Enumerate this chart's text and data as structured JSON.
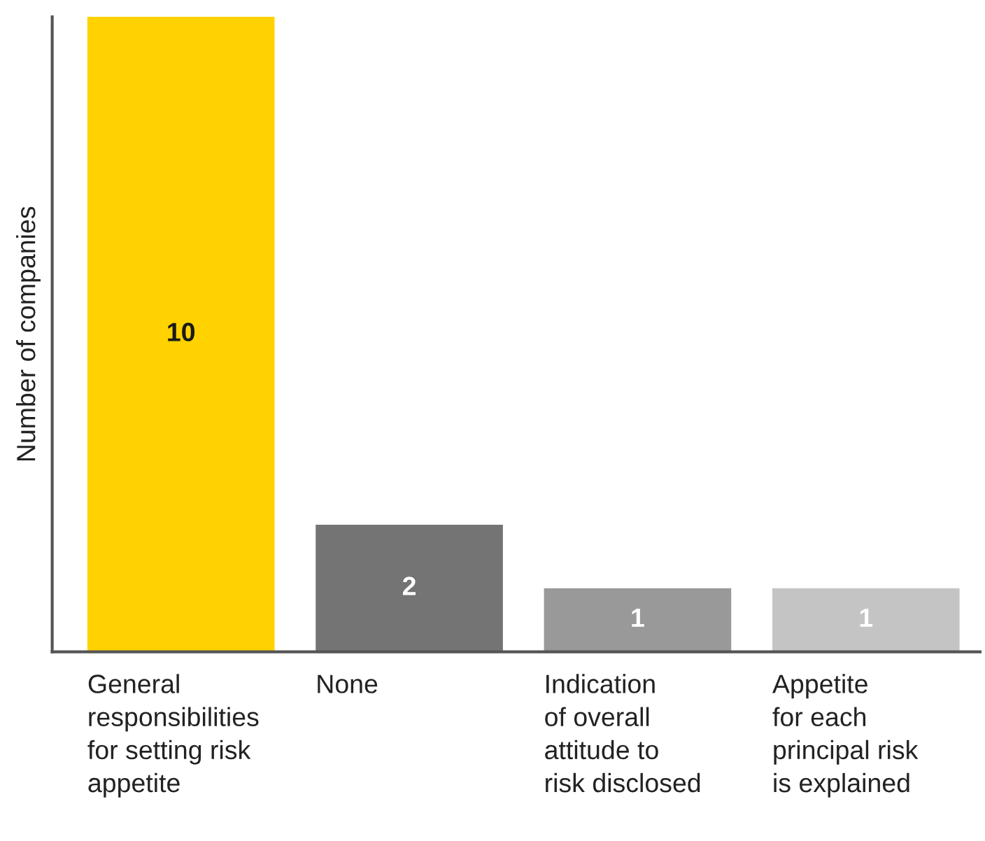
{
  "chart_data": {
    "type": "bar",
    "ylabel": "Number of companies",
    "categories": [
      "General\nresponsibilities\nfor setting risk\nappetite",
      "None",
      "Indication\nof overall\nattitude to\nrisk disclosed",
      "Appetite\nfor each\nprincipal risk\nis explained"
    ],
    "values": [
      10,
      2,
      1,
      1
    ],
    "colors": [
      "#ffd200",
      "#747474",
      "#999999",
      "#c4c4c4"
    ],
    "ylim": [
      0,
      10
    ],
    "data_labels": true,
    "tick_labels": "x"
  }
}
